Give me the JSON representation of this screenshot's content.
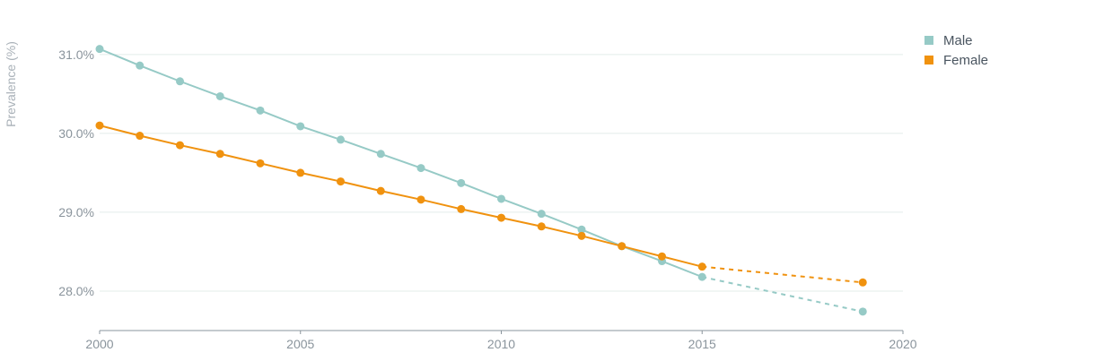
{
  "chart_data": {
    "type": "line",
    "ylabel": "Prevalence (%)",
    "xlim": [
      2000,
      2020
    ],
    "ylim": [
      27.5,
      31.35
    ],
    "x_ticks": [
      2000,
      2005,
      2010,
      2015,
      2020
    ],
    "y_ticks": [
      {
        "value": 28.0,
        "label": "28.0%"
      },
      {
        "value": 29.0,
        "label": "29.0%"
      },
      {
        "value": 30.0,
        "label": "30.0%"
      },
      {
        "value": 31.0,
        "label": "31.0%"
      }
    ],
    "grid": true,
    "legend_position": "top-right",
    "series": [
      {
        "name": "Male",
        "color": "#96cac6",
        "x": [
          2000,
          2001,
          2002,
          2003,
          2004,
          2005,
          2006,
          2007,
          2008,
          2009,
          2010,
          2011,
          2012,
          2013,
          2014,
          2015
        ],
        "y": [
          31.07,
          30.86,
          30.66,
          30.47,
          30.29,
          30.09,
          29.92,
          29.74,
          29.56,
          29.37,
          29.17,
          28.98,
          28.78,
          28.57,
          28.38,
          28.18
        ],
        "projection": {
          "x": [
            2015,
            2019
          ],
          "y": [
            28.18,
            27.74
          ]
        }
      },
      {
        "name": "Female",
        "color": "#f0920f",
        "x": [
          2000,
          2001,
          2002,
          2003,
          2004,
          2005,
          2006,
          2007,
          2008,
          2009,
          2010,
          2011,
          2012,
          2013,
          2014,
          2015
        ],
        "y": [
          30.1,
          29.97,
          29.85,
          29.74,
          29.62,
          29.5,
          29.39,
          29.27,
          29.16,
          29.04,
          28.93,
          28.82,
          28.7,
          28.57,
          28.44,
          28.31
        ],
        "projection": {
          "x": [
            2015,
            2019
          ],
          "y": [
            28.31,
            28.11
          ]
        }
      }
    ]
  }
}
